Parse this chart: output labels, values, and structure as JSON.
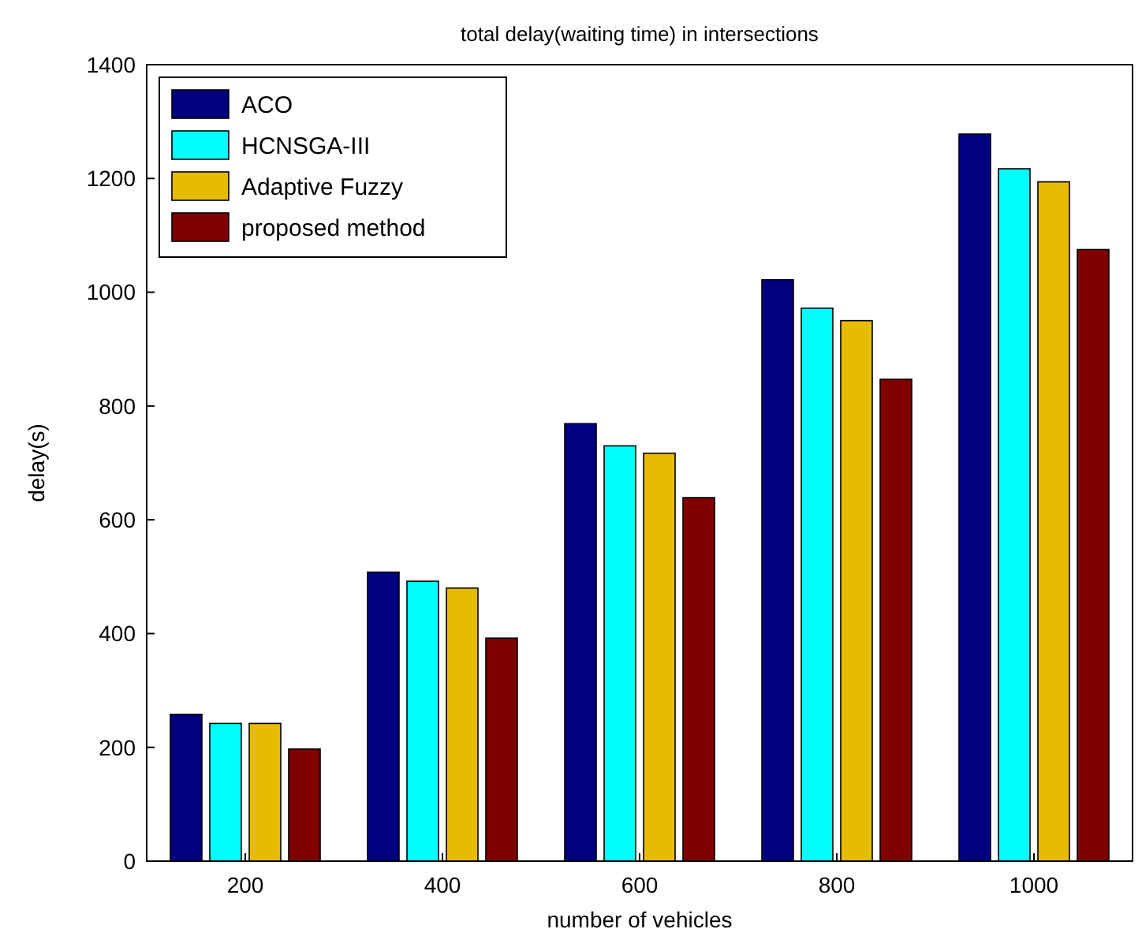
{
  "chart_data": {
    "type": "bar",
    "title": "total delay(waiting time) in intersections",
    "xlabel": "number of vehicles",
    "ylabel": "delay(s)",
    "categories": [
      "200",
      "400",
      "600",
      "800",
      "1000"
    ],
    "series": [
      {
        "name": "ACO",
        "color": "#000080",
        "values": [
          258,
          508,
          769,
          1022,
          1278
        ]
      },
      {
        "name": "HCNSGA-III",
        "color": "#00ffff",
        "values": [
          242,
          492,
          730,
          972,
          1217
        ]
      },
      {
        "name": "Adaptive Fuzzy",
        "color": "#e6bb00",
        "values": [
          242,
          480,
          717,
          950,
          1194
        ]
      },
      {
        "name": "proposed method",
        "color": "#800000",
        "values": [
          197,
          392,
          639,
          847,
          1075
        ]
      }
    ],
    "ylim": [
      0,
      1400
    ],
    "yticks": [
      0,
      200,
      400,
      600,
      800,
      1000,
      1200,
      1400
    ],
    "legend": "top left",
    "grid": false
  }
}
